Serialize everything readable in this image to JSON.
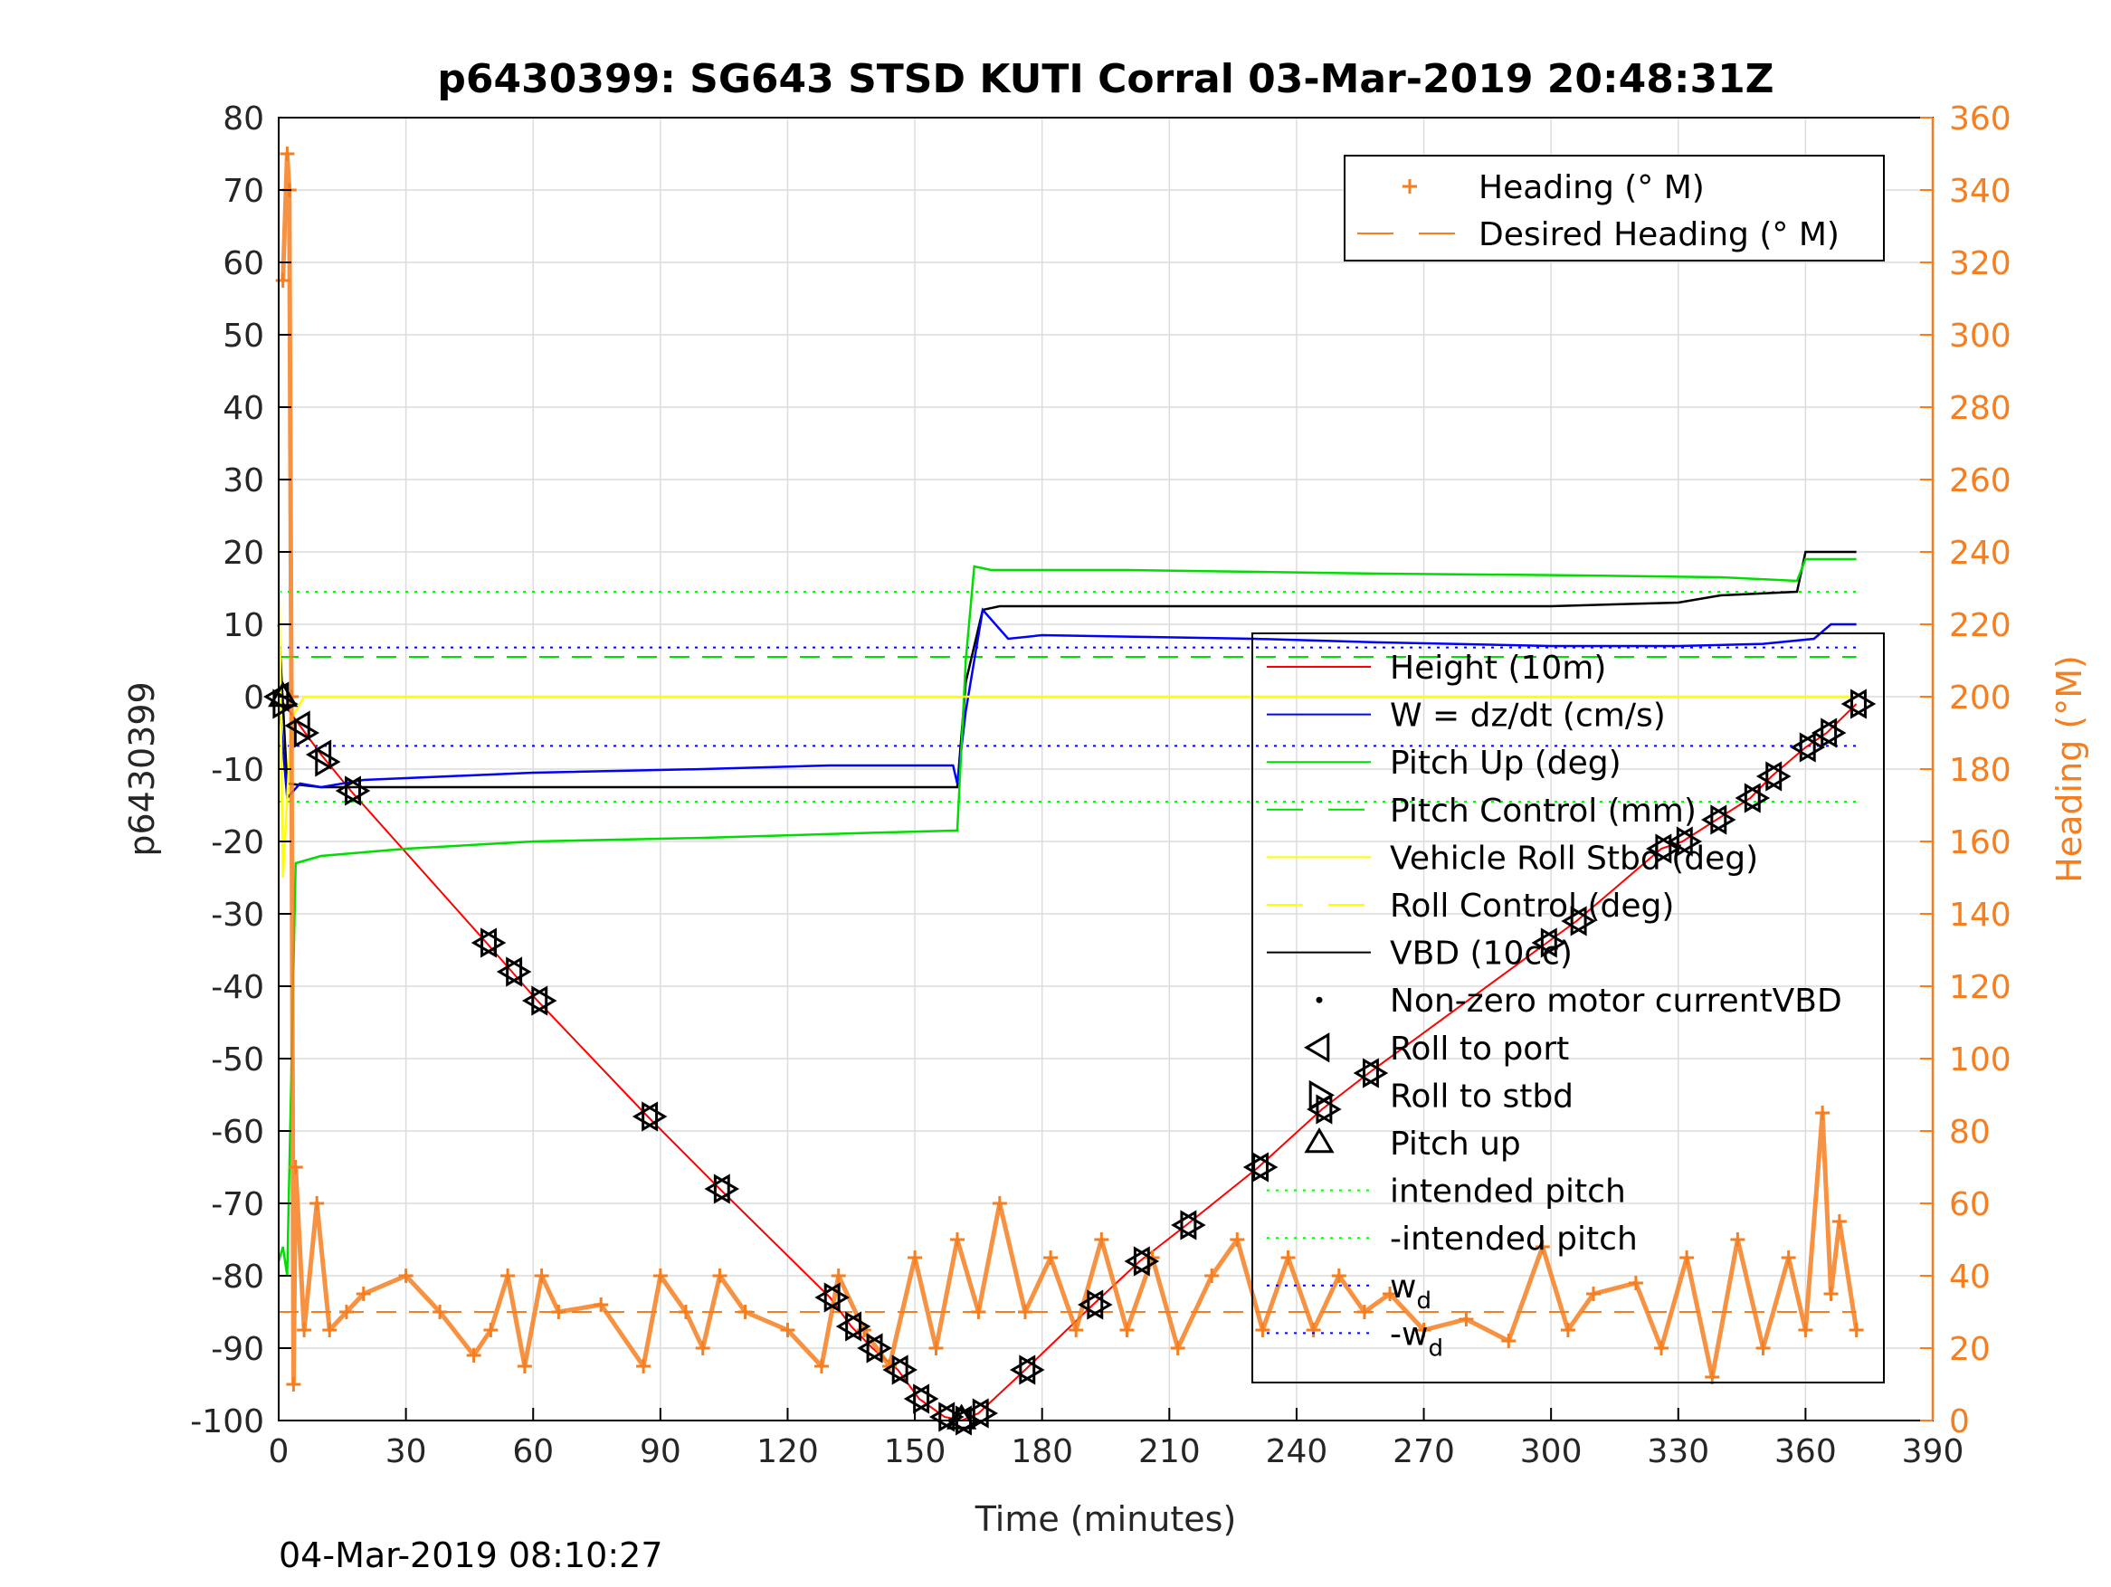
{
  "chart_data": {
    "type": "line",
    "title": "p6430399: SG643 STSD KUTI Corral 03-Mar-2019 20:48:31Z",
    "xlabel": "Time (minutes)",
    "ylabel_left": "p6430399",
    "ylabel_right": "Heading (°M)",
    "footer": "04-Mar-2019 08:10:27",
    "xlim": [
      0,
      390
    ],
    "ylim_left": [
      -100,
      80
    ],
    "ylim_right": [
      0,
      360
    ],
    "xticks": [
      0,
      30,
      60,
      90,
      120,
      150,
      180,
      210,
      240,
      270,
      300,
      330,
      360,
      390
    ],
    "yticks_left": [
      80,
      70,
      60,
      50,
      40,
      30,
      20,
      10,
      0,
      -10,
      -20,
      -30,
      -40,
      -50,
      -60,
      -70,
      -80,
      -90,
      -100
    ],
    "yticks_right": [
      360,
      340,
      320,
      300,
      280,
      260,
      240,
      220,
      200,
      180,
      160,
      140,
      120,
      100,
      80,
      60,
      40,
      20,
      0
    ],
    "grid": true,
    "colors": {
      "heading": "#f57f20",
      "height": "#ff0000",
      "w": "#0000ff",
      "pitch": "#00dd00",
      "roll": "#ffff00",
      "vbd": "#000000",
      "right_axis": "#f57f20"
    },
    "legend_heading": [
      {
        "label": "Heading (° M)",
        "style": "plus",
        "color": "#f57f20"
      },
      {
        "label": "Desired Heading (° M)",
        "style": "dash",
        "color": "#f57f20"
      }
    ],
    "legend_main": [
      {
        "label": "Height (10m)",
        "style": "line",
        "color": "#ff0000"
      },
      {
        "label": "W = dz/dt (cm/s)",
        "style": "line",
        "color": "#0000ff"
      },
      {
        "label": "Pitch Up (deg)",
        "style": "line",
        "color": "#00dd00"
      },
      {
        "label": "Pitch Control (mm)",
        "style": "dash",
        "color": "#00dd00"
      },
      {
        "label": "Vehicle Roll Stbd (deg)",
        "style": "line",
        "color": "#ffff00"
      },
      {
        "label": "Roll Control (deg)",
        "style": "dash",
        "color": "#ffff00"
      },
      {
        "label": "VBD (10cc)",
        "style": "line",
        "color": "#000000"
      },
      {
        "label": "Non-zero motor currentVBD",
        "style": "dot",
        "color": "#000000"
      },
      {
        "label": "Roll to port",
        "style": "tri-left",
        "color": "#000000"
      },
      {
        "label": "Roll to stbd",
        "style": "tri-right",
        "color": "#000000"
      },
      {
        "label": "Pitch up",
        "style": "tri-up",
        "color": "#000000"
      },
      {
        "label": "intended pitch",
        "style": "dot-line",
        "color": "#00ff00"
      },
      {
        "label": "-intended pitch",
        "style": "dot-line",
        "color": "#00ff00"
      },
      {
        "label": "w_d",
        "style": "dot-line",
        "color": "#0000ff",
        "base": "w",
        "sub": "d"
      },
      {
        "label": "-w_d",
        "style": "dot-line",
        "color": "#0000ff",
        "base": "-w",
        "sub": "d"
      }
    ],
    "series": [
      {
        "name": "Height (10m)",
        "color": "#ff0000",
        "x": [
          0,
          5,
          10,
          17,
          49,
          55,
          61,
          87,
          104,
          130,
          135,
          140,
          146,
          151,
          157,
          161,
          165,
          176,
          192,
          203,
          214,
          231,
          246,
          257,
          299,
          306,
          326,
          331,
          339,
          347,
          352,
          360,
          365,
          372
        ],
        "y": [
          0,
          -4,
          -8,
          -13,
          -34,
          -38,
          -42,
          -58,
          -68,
          -83,
          -87,
          -90,
          -93,
          -97,
          -99.5,
          -100,
          -99,
          -93,
          -84,
          -78,
          -73,
          -65,
          -57,
          -52,
          -34,
          -31,
          -21,
          -20,
          -17,
          -14,
          -11,
          -7,
          -5,
          -1
        ]
      },
      {
        "name": "VBD (10cc)",
        "color": "#000000",
        "x": [
          0,
          2,
          10,
          20,
          30,
          159,
          160,
          162,
          166,
          170,
          300,
          330,
          340,
          358,
          360,
          372
        ],
        "y": [
          10,
          -12,
          -12.5,
          -12.5,
          -12.5,
          -12.5,
          -12.5,
          2,
          12,
          12.5,
          12.5,
          13,
          14,
          14.5,
          20,
          20
        ]
      },
      {
        "name": "W = dz/dt (cm/s)",
        "color": "#0000ff",
        "x": [
          0,
          2,
          5,
          10,
          20,
          40,
          60,
          100,
          130,
          155,
          159,
          160,
          162,
          166,
          172,
          180,
          200,
          230,
          260,
          300,
          330,
          350,
          362,
          366,
          372
        ],
        "y": [
          0,
          -14,
          -12,
          -12.5,
          -11.5,
          -11,
          -10.5,
          -10,
          -9.5,
          -9.5,
          -9.5,
          -12,
          -2,
          12,
          8,
          8.5,
          8.3,
          8,
          7.5,
          7,
          7,
          7.3,
          8,
          10,
          10
        ]
      },
      {
        "name": "Pitch Up (deg)",
        "color": "#00dd00",
        "x": [
          0,
          1,
          2,
          4,
          10,
          30,
          60,
          100,
          140,
          159,
          160,
          162,
          164,
          168,
          200,
          260,
          300,
          340,
          358,
          360,
          372
        ],
        "y": [
          -78,
          -76,
          -80,
          -23,
          -22,
          -21,
          -20,
          -19.5,
          -18.8,
          -18.5,
          -18.5,
          5,
          18,
          17.5,
          17.5,
          17,
          16.8,
          16.5,
          16,
          19,
          19
        ]
      },
      {
        "name": "Vehicle Roll Stbd (deg)",
        "color": "#ffff00",
        "x": [
          0,
          1,
          3,
          6,
          10,
          20,
          50,
          100,
          150,
          159,
          162,
          200,
          250,
          300,
          350,
          372
        ],
        "y": [
          22,
          -25,
          -3,
          0,
          0,
          0,
          0,
          0,
          0,
          0,
          0,
          0,
          0,
          0,
          0,
          0
        ]
      },
      {
        "name": "Heading (° M)",
        "color": "#f57f20",
        "axis": "right",
        "x": [
          1,
          2,
          2.5,
          3,
          3.5,
          4,
          6,
          9,
          12,
          16,
          20,
          30,
          38,
          46,
          50,
          54,
          58,
          62,
          66,
          76,
          86,
          90,
          96,
          100,
          104,
          110,
          120,
          128,
          132,
          138,
          144,
          150,
          155,
          160,
          165,
          170,
          176,
          182,
          188,
          194,
          200,
          206,
          212,
          220,
          226,
          232,
          238,
          244,
          250,
          256,
          262,
          270,
          280,
          290,
          298,
          304,
          310,
          320,
          326,
          332,
          338,
          344,
          350,
          356,
          360,
          364,
          366,
          368,
          372
        ],
        "y": [
          315,
          350,
          340,
          200,
          10,
          70,
          25,
          60,
          25,
          30,
          35,
          40,
          30,
          18,
          25,
          40,
          15,
          40,
          30,
          32,
          15,
          40,
          30,
          20,
          40,
          30,
          25,
          15,
          40,
          25,
          15,
          45,
          20,
          50,
          30,
          60,
          30,
          45,
          25,
          50,
          25,
          45,
          20,
          40,
          50,
          25,
          45,
          25,
          40,
          30,
          35,
          25,
          28,
          22,
          48,
          25,
          35,
          38,
          20,
          45,
          12,
          50,
          20,
          45,
          25,
          85,
          35,
          55,
          25
        ]
      }
    ],
    "ref_lines": [
      {
        "name": "intended pitch",
        "y": 14.5,
        "color": "#00ff00"
      },
      {
        "name": "-intended pitch",
        "y": -14.5,
        "color": "#00ff00"
      },
      {
        "name": "w_d",
        "y": 6.8,
        "color": "#0000ff"
      },
      {
        "name": "-w_d",
        "y": -6.8,
        "color": "#0000ff"
      },
      {
        "name": "Pitch Control (mm)",
        "y": 5.5,
        "color": "#00dd00"
      },
      {
        "name": "Desired Heading (° M)",
        "y": 30,
        "axis": "right",
        "color": "#f57f20"
      }
    ],
    "markers_roll_port": [
      [
        0,
        0
      ],
      [
        5,
        -4
      ],
      [
        10,
        -8
      ],
      [
        17,
        -13
      ],
      [
        49,
        -34
      ],
      [
        55,
        -38
      ],
      [
        61,
        -42
      ],
      [
        87,
        -58
      ],
      [
        104,
        -68
      ],
      [
        130,
        -83
      ],
      [
        135,
        -87
      ],
      [
        140,
        -90
      ],
      [
        146,
        -93
      ],
      [
        151,
        -97
      ],
      [
        157,
        -99.5
      ],
      [
        161,
        -100
      ],
      [
        165,
        -99
      ],
      [
        176,
        -93
      ],
      [
        192,
        -84
      ],
      [
        203,
        -78
      ],
      [
        214,
        -73
      ],
      [
        231,
        -65
      ],
      [
        246,
        -57
      ],
      [
        257,
        -52
      ],
      [
        299,
        -34
      ],
      [
        306,
        -31
      ],
      [
        326,
        -21
      ],
      [
        331,
        -20
      ],
      [
        339,
        -17
      ],
      [
        347,
        -14
      ],
      [
        352,
        -11
      ],
      [
        360,
        -7
      ],
      [
        365,
        -5
      ],
      [
        372,
        -1
      ]
    ],
    "markers_roll_stbd": [
      [
        1,
        -1
      ],
      [
        6,
        -5
      ],
      [
        11,
        -9
      ],
      [
        18,
        -13
      ],
      [
        50,
        -34
      ],
      [
        56,
        -38
      ],
      [
        62,
        -42
      ],
      [
        88,
        -58
      ],
      [
        105,
        -68
      ],
      [
        131,
        -83
      ],
      [
        136,
        -87
      ],
      [
        141,
        -90
      ],
      [
        147,
        -93
      ],
      [
        152,
        -97
      ],
      [
        158,
        -99.5
      ],
      [
        162,
        -100
      ],
      [
        166,
        -99
      ],
      [
        177,
        -93
      ],
      [
        193,
        -84
      ],
      [
        204,
        -78
      ],
      [
        215,
        -73
      ],
      [
        232,
        -65
      ],
      [
        247,
        -57
      ],
      [
        258,
        -52
      ],
      [
        300,
        -34
      ],
      [
        307,
        -31
      ],
      [
        327,
        -21
      ],
      [
        332,
        -20
      ],
      [
        340,
        -17
      ],
      [
        348,
        -14
      ],
      [
        353,
        -11
      ],
      [
        361,
        -7
      ],
      [
        366,
        -5
      ],
      [
        373,
        -1
      ]
    ],
    "markers_pitch_up": [
      [
        1,
        0
      ],
      [
        161,
        -99.8
      ]
    ]
  }
}
